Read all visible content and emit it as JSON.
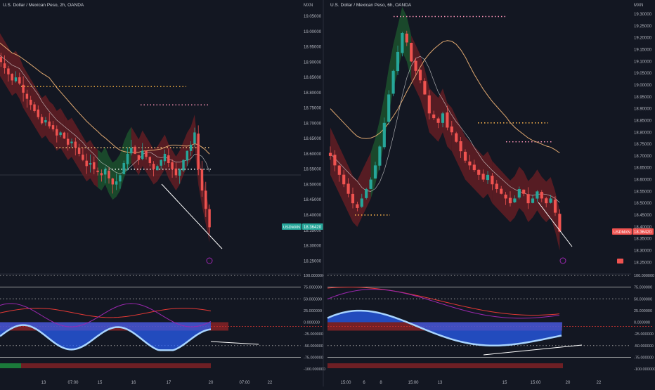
{
  "colors": {
    "background": "#131722",
    "up": "#26a69a",
    "down": "#ef5350",
    "cloud_up": "#1e5a2f",
    "cloud_down": "#6e1f24",
    "price_tag": "#26a69a",
    "price_tag_down": "#ef5350",
    "ma": "#e0a870",
    "trend_line": "#ffffff",
    "osc_blue": "#2962ff",
    "osc_light": "#a8d4ff",
    "osc_red": "#e53935",
    "osc_purple": "#9c27b0",
    "osc_yellow": "#f0c05a"
  },
  "chart_data": [
    {
      "type": "candlestick",
      "title": "U.S. Dollar / Mexican Peso, 2h, OANDA",
      "currency": "MXN",
      "symbol_tag": "USDMXN",
      "last_price_label": "18.36420",
      "price_ticks": [
        "19.05000",
        "19.00000",
        "18.95000",
        "18.90000",
        "18.85000",
        "18.80000",
        "18.75000",
        "18.70000",
        "18.65000",
        "18.60000",
        "18.55000",
        "18.50000",
        "18.45000",
        "18.40000",
        "18.35000",
        "18.30000",
        "18.25000"
      ],
      "ylim": [
        18.23,
        19.08
      ],
      "time_ticks": [
        "13",
        "07:00",
        "15",
        "16",
        "17",
        "20",
        "07:00",
        "22"
      ],
      "close_values": [
        18.92,
        18.9,
        18.88,
        18.86,
        18.84,
        18.85,
        18.83,
        18.8,
        18.78,
        18.76,
        18.74,
        18.72,
        18.7,
        18.71,
        18.69,
        18.68,
        18.66,
        18.67,
        18.65,
        18.63,
        18.64,
        18.62,
        18.6,
        18.58,
        18.56,
        18.57,
        18.55,
        18.54,
        18.53,
        18.55,
        18.52,
        18.5,
        18.51,
        18.53,
        18.57,
        18.6,
        18.62,
        18.6,
        18.58,
        18.61,
        18.59,
        18.57,
        18.55,
        18.56,
        18.58,
        18.6,
        18.57,
        18.55,
        18.53,
        18.55,
        18.58,
        18.61,
        18.63,
        18.67,
        18.55,
        18.48,
        18.42,
        18.36
      ],
      "oscillator": {
        "yticks": [
          "100.000000",
          "75.000000",
          "50.000000",
          "25.000000",
          "0.000000",
          "-25.000000",
          "-50.000000",
          "-75.000000",
          "-100.000000"
        ],
        "ylim": [
          -100,
          100
        ]
      }
    },
    {
      "type": "candlestick",
      "title": "U.S. Dollar / Mexican Peso, 6h, OANDA",
      "currency": "MXN",
      "symbol_tag": "USDMXN",
      "last_price_label": "18.36420",
      "price_ticks": [
        "19.30000",
        "19.25000",
        "19.20000",
        "19.15000",
        "19.10000",
        "19.05000",
        "19.00000",
        "18.95000",
        "18.90000",
        "18.85000",
        "18.80000",
        "18.75000",
        "18.70000",
        "18.65000",
        "18.60000",
        "18.55000",
        "18.50000",
        "18.45000",
        "18.40000",
        "18.35000",
        "18.30000",
        "18.25000"
      ],
      "ylim": [
        18.23,
        19.33
      ],
      "time_ticks": [
        "15:00",
        "6",
        "8",
        "15:00",
        "13",
        "15",
        "15:00",
        "20",
        "22"
      ],
      "close_values": [
        18.7,
        18.66,
        18.62,
        18.58,
        18.54,
        18.5,
        18.48,
        18.52,
        18.56,
        18.6,
        18.66,
        18.74,
        18.84,
        18.96,
        19.06,
        19.14,
        19.22,
        19.18,
        19.1,
        19.06,
        19.02,
        18.96,
        18.88,
        18.86,
        18.84,
        18.88,
        18.82,
        18.8,
        18.76,
        18.72,
        18.68,
        18.66,
        18.64,
        18.62,
        18.6,
        18.62,
        18.58,
        18.56,
        18.54,
        18.52,
        18.5,
        18.52,
        18.56,
        18.54,
        18.5,
        18.52,
        18.55,
        18.52,
        18.5,
        18.52,
        18.46,
        18.38
      ],
      "oscillator": {
        "yticks": [
          "100.000000",
          "75.000000",
          "50.000000",
          "25.000000",
          "0.000000",
          "-25.000000",
          "-50.000000",
          "-75.000000",
          "-100.000000"
        ],
        "ylim": [
          -100,
          100
        ]
      }
    }
  ]
}
